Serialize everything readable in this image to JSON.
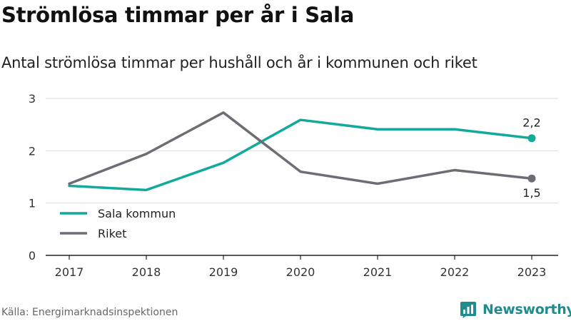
{
  "header": {
    "title": "Strömlösa timmar per år i Sala",
    "subtitle": "Antal strömlösa timmar per hushåll och år i kommunen och riket"
  },
  "footer": {
    "source": "Källa: Energimarknadsinspektionen",
    "brand": "Newsworthy",
    "brand_icon": "newsworthy-logo-icon"
  },
  "chart_data": {
    "type": "line",
    "x": [
      "2017",
      "2018",
      "2019",
      "2020",
      "2021",
      "2022",
      "2023"
    ],
    "series": [
      {
        "name": "Sala kommun",
        "color": "#13a99b",
        "values": [
          1.33,
          1.25,
          1.77,
          2.59,
          2.41,
          2.41,
          2.24
        ],
        "end_label": "2,2"
      },
      {
        "name": "Riket",
        "color": "#6d6d76",
        "values": [
          1.37,
          1.94,
          2.73,
          1.6,
          1.37,
          1.63,
          1.47
        ],
        "end_label": "1,5"
      }
    ],
    "ylim": [
      0,
      3
    ],
    "yticks": [
      0,
      1,
      2,
      3
    ],
    "grid": true,
    "legend_position": "bottom-left"
  }
}
